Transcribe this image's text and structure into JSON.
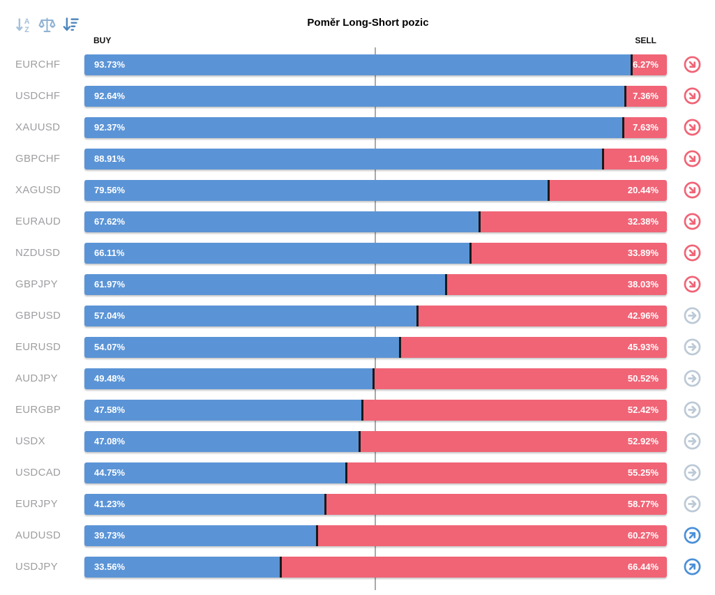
{
  "title": "Poměr Long-Short pozic",
  "columns": {
    "buy": "BUY",
    "sell": "SELL"
  },
  "toolbar": {
    "icons": [
      {
        "name": "sort-alphabetical-icon"
      },
      {
        "name": "balance-scale-icon"
      },
      {
        "name": "sort-amount-descending-icon"
      }
    ]
  },
  "colors": {
    "buy_bar": "#5b94d6",
    "sell_bar": "#f06476",
    "bar_divider": "#1a1a1a",
    "signal_down": "#f06476",
    "signal_flat": "#bcc9d6",
    "signal_up": "#4a8fd8",
    "center_line": "#a9a9a9"
  },
  "chart_data": {
    "type": "bar",
    "orientation": "horizontal",
    "stacked": true,
    "title": "Poměr Long-Short pozic",
    "series_names": [
      "BUY",
      "SELL"
    ],
    "categories": [
      "EURCHF",
      "USDCHF",
      "XAUUSD",
      "GBPCHF",
      "XAGUSD",
      "EURAUD",
      "NZDUSD",
      "GBPJPY",
      "GBPUSD",
      "EURUSD",
      "AUDJPY",
      "EURGBP",
      "USDX",
      "USDCAD",
      "EURJPY",
      "AUDUSD",
      "USDJPY"
    ],
    "series": [
      {
        "name": "BUY",
        "values": [
          93.73,
          92.64,
          92.37,
          88.91,
          79.56,
          67.62,
          66.11,
          61.97,
          57.04,
          54.07,
          49.48,
          47.58,
          47.08,
          44.75,
          41.23,
          39.73,
          33.56
        ]
      },
      {
        "name": "SELL",
        "values": [
          6.27,
          7.36,
          7.63,
          11.09,
          20.44,
          32.38,
          33.89,
          38.03,
          42.96,
          45.93,
          50.52,
          52.42,
          52.92,
          55.25,
          58.77,
          60.27,
          66.44
        ]
      }
    ],
    "xlim": [
      0,
      100
    ],
    "center_reference_line": 50,
    "legend_position": "top"
  },
  "rows": [
    {
      "symbol": "EURCHF",
      "buy_label": "93.73%",
      "sell_label": "6.27%",
      "buy_pct": 93.73,
      "sell_pct": 6.27,
      "signal": "down"
    },
    {
      "symbol": "USDCHF",
      "buy_label": "92.64%",
      "sell_label": "7.36%",
      "buy_pct": 92.64,
      "sell_pct": 7.36,
      "signal": "down"
    },
    {
      "symbol": "XAUUSD",
      "buy_label": "92.37%",
      "sell_label": "7.63%",
      "buy_pct": 92.37,
      "sell_pct": 7.63,
      "signal": "down"
    },
    {
      "symbol": "GBPCHF",
      "buy_label": "88.91%",
      "sell_label": "11.09%",
      "buy_pct": 88.91,
      "sell_pct": 11.09,
      "signal": "down"
    },
    {
      "symbol": "XAGUSD",
      "buy_label": "79.56%",
      "sell_label": "20.44%",
      "buy_pct": 79.56,
      "sell_pct": 20.44,
      "signal": "down"
    },
    {
      "symbol": "EURAUD",
      "buy_label": "67.62%",
      "sell_label": "32.38%",
      "buy_pct": 67.62,
      "sell_pct": 32.38,
      "signal": "down"
    },
    {
      "symbol": "NZDUSD",
      "buy_label": "66.11%",
      "sell_label": "33.89%",
      "buy_pct": 66.11,
      "sell_pct": 33.89,
      "signal": "down"
    },
    {
      "symbol": "GBPJPY",
      "buy_label": "61.97%",
      "sell_label": "38.03%",
      "buy_pct": 61.97,
      "sell_pct": 38.03,
      "signal": "down"
    },
    {
      "symbol": "GBPUSD",
      "buy_label": "57.04%",
      "sell_label": "42.96%",
      "buy_pct": 57.04,
      "sell_pct": 42.96,
      "signal": "flat"
    },
    {
      "symbol": "EURUSD",
      "buy_label": "54.07%",
      "sell_label": "45.93%",
      "buy_pct": 54.07,
      "sell_pct": 45.93,
      "signal": "flat"
    },
    {
      "symbol": "AUDJPY",
      "buy_label": "49.48%",
      "sell_label": "50.52%",
      "buy_pct": 49.48,
      "sell_pct": 50.52,
      "signal": "flat"
    },
    {
      "symbol": "EURGBP",
      "buy_label": "47.58%",
      "sell_label": "52.42%",
      "buy_pct": 47.58,
      "sell_pct": 52.42,
      "signal": "flat"
    },
    {
      "symbol": "USDX",
      "buy_label": "47.08%",
      "sell_label": "52.92%",
      "buy_pct": 47.08,
      "sell_pct": 52.92,
      "signal": "flat"
    },
    {
      "symbol": "USDCAD",
      "buy_label": "44.75%",
      "sell_label": "55.25%",
      "buy_pct": 44.75,
      "sell_pct": 55.25,
      "signal": "flat"
    },
    {
      "symbol": "EURJPY",
      "buy_label": "41.23%",
      "sell_label": "58.77%",
      "buy_pct": 41.23,
      "sell_pct": 58.77,
      "signal": "flat"
    },
    {
      "symbol": "AUDUSD",
      "buy_label": "39.73%",
      "sell_label": "60.27%",
      "buy_pct": 39.73,
      "sell_pct": 60.27,
      "signal": "up"
    },
    {
      "symbol": "USDJPY",
      "buy_label": "33.56%",
      "sell_label": "66.44%",
      "buy_pct": 33.56,
      "sell_pct": 66.44,
      "signal": "up"
    }
  ]
}
